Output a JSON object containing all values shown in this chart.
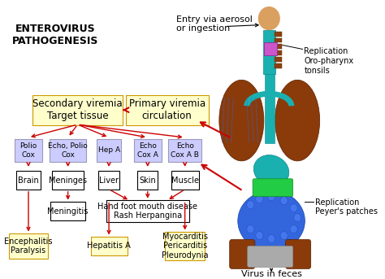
{
  "bg_color": "#ffffff",
  "arrow_color": "#cc0000",
  "box_yellow_bg": "#ffffcc",
  "box_yellow_edge": "#cc9900",
  "box_purple_bg": "#ccccff",
  "box_purple_edge": "#9999bb",
  "title": "ENTEROVIRUS\nPATHOGENESIS",
  "entry_text": "Entry via aerosol\nor ingestion",
  "replication1_text": "Replication\nOro-pharynx\ntonsils",
  "replication2_text": "Replication\nPeyer's patches",
  "virus_text": "Virus in feces",
  "secondary_text": "Secondary viremia\nTarget tissue",
  "primary_text": "Primary viremia\ncirculation",
  "fig_w": 4.74,
  "fig_h": 3.43,
  "dpi": 100
}
